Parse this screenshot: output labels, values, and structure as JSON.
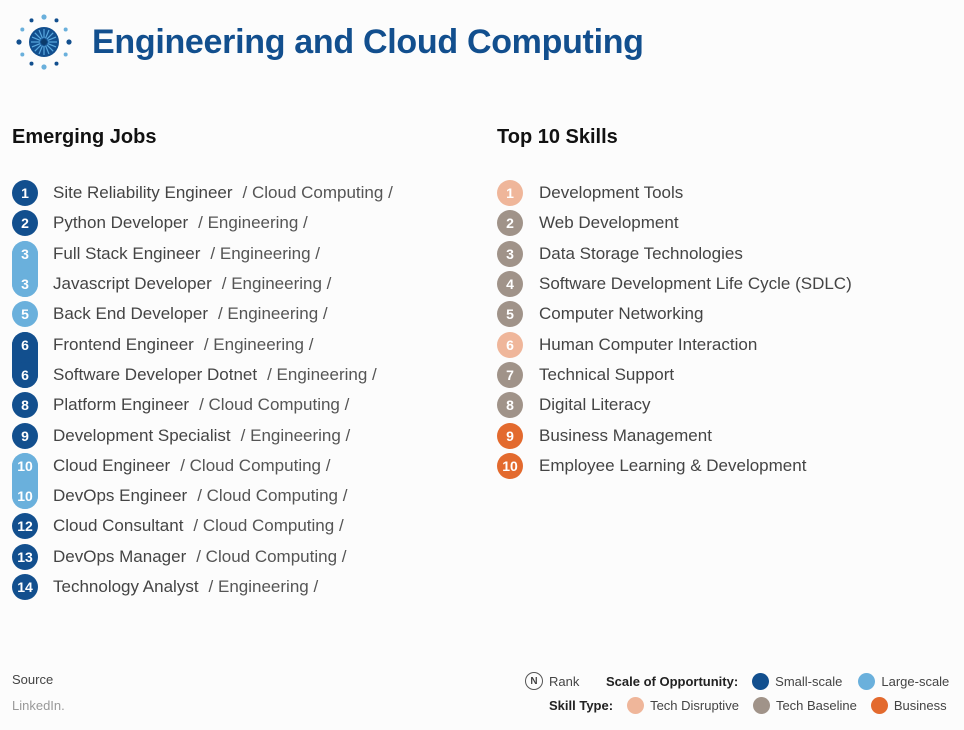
{
  "page": {
    "title": "Engineering and Cloud Computing"
  },
  "colors": {
    "small_scale": "#124f8e",
    "large_scale": "#6ab0dc",
    "tech_disruptive": "#efb69a",
    "tech_baseline": "#a09389",
    "business": "#e36a2e",
    "title": "#124f8e"
  },
  "jobs": {
    "heading": "Emerging Jobs",
    "items": [
      {
        "rank": "1",
        "title": "Site Reliability Engineer",
        "category": "/ Cloud Computing /",
        "scale": "small"
      },
      {
        "rank": "2",
        "title": "Python Developer",
        "category": "/ Engineering /",
        "scale": "small"
      },
      {
        "rank": "3",
        "title": "Full Stack Engineer",
        "category": "/ Engineering /",
        "scale": "large"
      },
      {
        "rank": "3",
        "title": "Javascript Developer",
        "category": "/ Engineering /",
        "scale": "large"
      },
      {
        "rank": "5",
        "title": "Back End Developer",
        "category": "/ Engineering /",
        "scale": "large"
      },
      {
        "rank": "6",
        "title": "Frontend Engineer",
        "category": "/ Engineering /",
        "scale": "small"
      },
      {
        "rank": "6",
        "title": "Software Developer Dotnet",
        "category": "/ Engineering /",
        "scale": "small"
      },
      {
        "rank": "8",
        "title": "Platform Engineer",
        "category": "/ Cloud Computing /",
        "scale": "small"
      },
      {
        "rank": "9",
        "title": "Development Specialist",
        "category": "/ Engineering /",
        "scale": "small"
      },
      {
        "rank": "10",
        "title": "Cloud Engineer",
        "category": "/ Cloud Computing /",
        "scale": "large"
      },
      {
        "rank": "10",
        "title": "DevOps Engineer",
        "category": "/ Cloud Computing /",
        "scale": "large"
      },
      {
        "rank": "12",
        "title": "Cloud Consultant",
        "category": "/ Cloud Computing /",
        "scale": "small"
      },
      {
        "rank": "13",
        "title": "DevOps Manager",
        "category": "/ Cloud Computing /",
        "scale": "small"
      },
      {
        "rank": "14",
        "title": "Technology Analyst",
        "category": "/ Engineering /",
        "scale": "small"
      }
    ]
  },
  "skills": {
    "heading": "Top 10 Skills",
    "items": [
      {
        "rank": "1",
        "name": "Development Tools",
        "type": "disruptive"
      },
      {
        "rank": "2",
        "name": "Web Development",
        "type": "baseline"
      },
      {
        "rank": "3",
        "name": "Data Storage Technologies",
        "type": "baseline"
      },
      {
        "rank": "4",
        "name": "Software Development Life Cycle (SDLC)",
        "type": "baseline"
      },
      {
        "rank": "5",
        "name": "Computer Networking",
        "type": "baseline"
      },
      {
        "rank": "6",
        "name": "Human Computer Interaction",
        "type": "disruptive"
      },
      {
        "rank": "7",
        "name": "Technical Support",
        "type": "baseline"
      },
      {
        "rank": "8",
        "name": "Digital Literacy",
        "type": "baseline"
      },
      {
        "rank": "9",
        "name": "Business Management",
        "type": "business"
      },
      {
        "rank": "10",
        "name": "Employee Learning & Development",
        "type": "business"
      }
    ]
  },
  "footer": {
    "source_label": "Source",
    "source_value": "LinkedIn."
  },
  "legend": {
    "rank_icon": "N",
    "rank_label": "Rank",
    "scale_label": "Scale of Opportunity:",
    "small_scale": "Small-scale",
    "large_scale": "Large-scale",
    "skill_type_label": "Skill Type:",
    "tech_disruptive": "Tech Disruptive",
    "tech_baseline": "Tech Baseline",
    "business": "Business"
  }
}
